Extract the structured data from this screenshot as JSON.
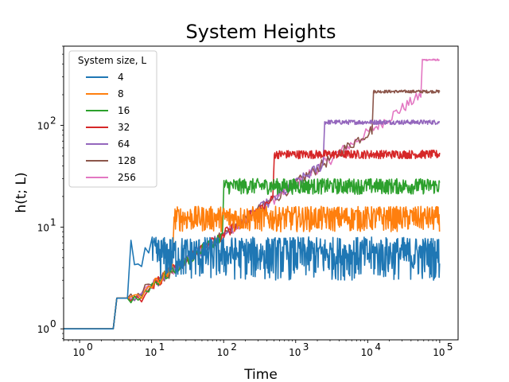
{
  "chart_data": {
    "type": "line",
    "title": "System Heights",
    "xlabel": "Time",
    "ylabel": "h(t; L)",
    "xscale": "log",
    "yscale": "log",
    "xlim": [
      0.6,
      180000
    ],
    "ylim": [
      0.78,
      600
    ],
    "x_ticks": [
      {
        "value": 1,
        "base": "10",
        "exp": "0"
      },
      {
        "value": 10,
        "base": "10",
        "exp": "1"
      },
      {
        "value": 100,
        "base": "10",
        "exp": "2"
      },
      {
        "value": 1000,
        "base": "10",
        "exp": "3"
      },
      {
        "value": 10000,
        "base": "10",
        "exp": "4"
      },
      {
        "value": 100000,
        "base": "10",
        "exp": "5"
      }
    ],
    "y_ticks": [
      {
        "value": 1,
        "base": "10",
        "exp": "0"
      },
      {
        "value": 10,
        "base": "10",
        "exp": "1"
      },
      {
        "value": 100,
        "base": "10",
        "exp": "2"
      }
    ],
    "legend": {
      "title": "System size, L",
      "placement": "top-left"
    },
    "series": [
      {
        "name": "4",
        "color": "#1f77b4",
        "L": 4,
        "saturation": 5,
        "noise_low": 3,
        "noise_high": 8,
        "t_cross": 5
      },
      {
        "name": "8",
        "color": "#ff7f0e",
        "L": 8,
        "saturation": 11.5,
        "noise_low": 9,
        "noise_high": 16,
        "t_cross": 20
      },
      {
        "name": "16",
        "color": "#2ca02c",
        "L": 16,
        "saturation": 25,
        "noise_low": 21,
        "noise_high": 30,
        "t_cross": 100
      },
      {
        "name": "32",
        "color": "#d62728",
        "L": 32,
        "saturation": 52,
        "noise_low": 47,
        "noise_high": 57,
        "t_cross": 500
      },
      {
        "name": "64",
        "color": "#9467bd",
        "L": 64,
        "saturation": 107,
        "noise_low": 102,
        "noise_high": 113,
        "t_cross": 2500
      },
      {
        "name": "128",
        "color": "#8c564b",
        "L": 128,
        "saturation": 215,
        "noise_low": 208,
        "noise_high": 222,
        "t_cross": 12000
      },
      {
        "name": "256",
        "color": "#e377c2",
        "L": 256,
        "saturation": 440,
        "noise_low": 432,
        "noise_high": 448,
        "t_cross": 55000
      }
    ]
  }
}
